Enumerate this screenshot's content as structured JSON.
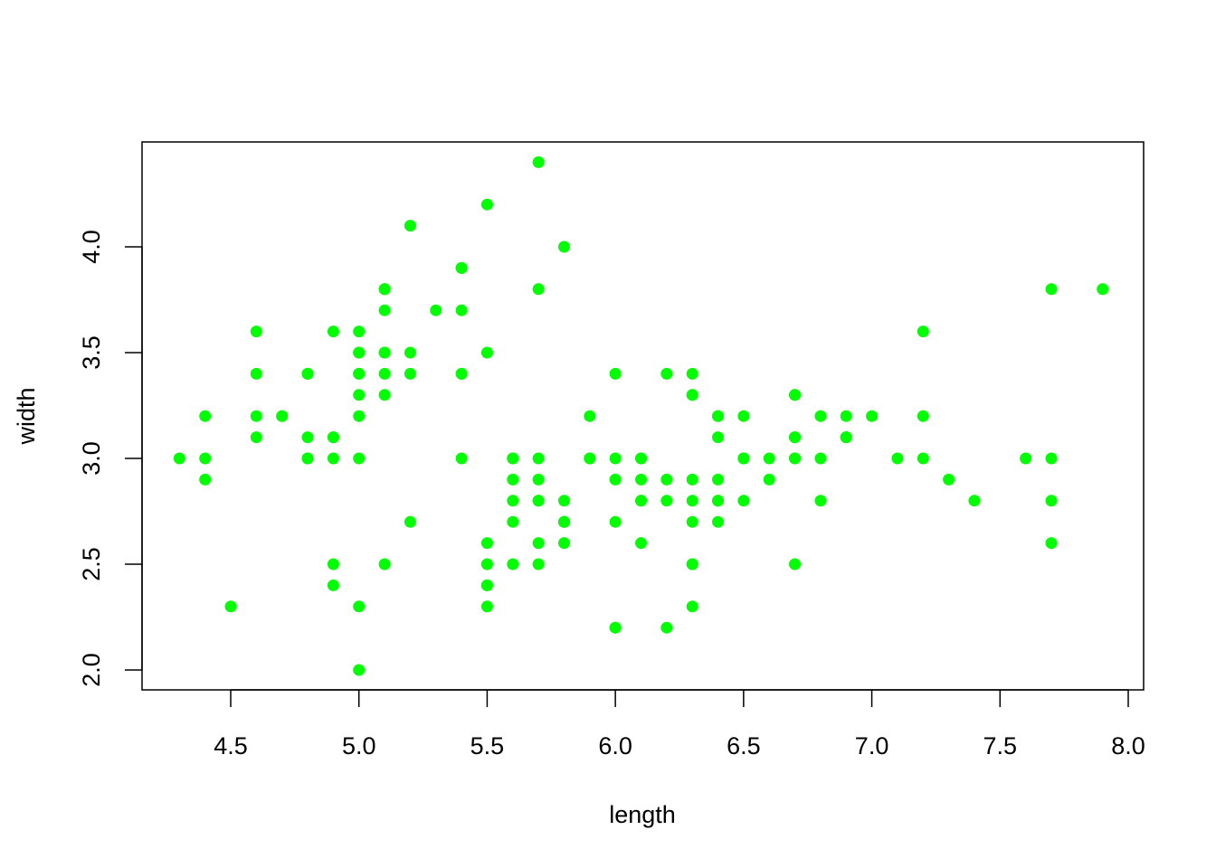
{
  "chart_data": {
    "type": "scatter",
    "title": "",
    "xlabel": "length",
    "ylabel": "width",
    "xlim": [
      4.3,
      7.9
    ],
    "ylim": [
      2.0,
      4.4
    ],
    "x_ticks": [
      "4.5",
      "5.0",
      "5.5",
      "6.0",
      "6.5",
      "7.0",
      "7.5",
      "8.0"
    ],
    "y_ticks": [
      "2.0",
      "2.5",
      "3.0",
      "3.5",
      "4.0"
    ],
    "grid": false,
    "point_color": "#00ff00",
    "points": [
      [
        5.1,
        3.5
      ],
      [
        4.9,
        3.0
      ],
      [
        4.7,
        3.2
      ],
      [
        4.6,
        3.1
      ],
      [
        5.0,
        3.6
      ],
      [
        5.4,
        3.9
      ],
      [
        4.6,
        3.4
      ],
      [
        5.0,
        3.4
      ],
      [
        4.4,
        2.9
      ],
      [
        4.9,
        3.1
      ],
      [
        5.4,
        3.7
      ],
      [
        4.8,
        3.4
      ],
      [
        4.8,
        3.0
      ],
      [
        4.3,
        3.0
      ],
      [
        5.8,
        4.0
      ],
      [
        5.7,
        4.4
      ],
      [
        5.4,
        3.9
      ],
      [
        5.1,
        3.5
      ],
      [
        5.7,
        3.8
      ],
      [
        5.1,
        3.8
      ],
      [
        5.4,
        3.4
      ],
      [
        5.1,
        3.7
      ],
      [
        4.6,
        3.6
      ],
      [
        5.1,
        3.3
      ],
      [
        4.8,
        3.4
      ],
      [
        5.0,
        3.0
      ],
      [
        5.0,
        3.4
      ],
      [
        5.2,
        3.5
      ],
      [
        5.2,
        3.4
      ],
      [
        4.7,
        3.2
      ],
      [
        4.8,
        3.1
      ],
      [
        5.4,
        3.4
      ],
      [
        5.2,
        4.1
      ],
      [
        5.5,
        4.2
      ],
      [
        4.9,
        3.1
      ],
      [
        5.0,
        3.2
      ],
      [
        5.5,
        3.5
      ],
      [
        4.9,
        3.6
      ],
      [
        4.4,
        3.0
      ],
      [
        5.1,
        3.4
      ],
      [
        5.0,
        3.5
      ],
      [
        4.5,
        2.3
      ],
      [
        4.4,
        3.2
      ],
      [
        5.0,
        3.5
      ],
      [
        5.1,
        3.8
      ],
      [
        4.8,
        3.0
      ],
      [
        5.1,
        3.8
      ],
      [
        4.6,
        3.2
      ],
      [
        5.3,
        3.7
      ],
      [
        5.0,
        3.3
      ],
      [
        7.0,
        3.2
      ],
      [
        6.4,
        3.2
      ],
      [
        6.9,
        3.1
      ],
      [
        5.5,
        2.3
      ],
      [
        6.5,
        2.8
      ],
      [
        5.7,
        2.8
      ],
      [
        6.3,
        3.3
      ],
      [
        4.9,
        2.4
      ],
      [
        6.6,
        2.9
      ],
      [
        5.2,
        2.7
      ],
      [
        5.0,
        2.0
      ],
      [
        5.9,
        3.0
      ],
      [
        6.0,
        2.2
      ],
      [
        6.1,
        2.9
      ],
      [
        5.6,
        2.9
      ],
      [
        6.7,
        3.1
      ],
      [
        5.6,
        3.0
      ],
      [
        5.8,
        2.7
      ],
      [
        6.2,
        2.2
      ],
      [
        5.6,
        2.5
      ],
      [
        5.9,
        3.2
      ],
      [
        6.1,
        2.8
      ],
      [
        6.3,
        2.5
      ],
      [
        6.1,
        2.8
      ],
      [
        6.4,
        2.9
      ],
      [
        6.6,
        3.0
      ],
      [
        6.8,
        2.8
      ],
      [
        6.7,
        3.0
      ],
      [
        6.0,
        2.9
      ],
      [
        5.7,
        2.6
      ],
      [
        5.5,
        2.4
      ],
      [
        5.5,
        2.4
      ],
      [
        5.8,
        2.7
      ],
      [
        6.0,
        2.7
      ],
      [
        5.4,
        3.0
      ],
      [
        6.0,
        3.4
      ],
      [
        6.7,
        3.1
      ],
      [
        6.3,
        2.3
      ],
      [
        5.6,
        3.0
      ],
      [
        5.5,
        2.5
      ],
      [
        5.5,
        2.6
      ],
      [
        6.1,
        3.0
      ],
      [
        5.8,
        2.6
      ],
      [
        5.0,
        2.3
      ],
      [
        5.6,
        2.7
      ],
      [
        5.7,
        3.0
      ],
      [
        5.7,
        2.9
      ],
      [
        6.2,
        2.9
      ],
      [
        5.1,
        2.5
      ],
      [
        5.7,
        2.8
      ],
      [
        6.3,
        3.3
      ],
      [
        5.8,
        2.7
      ],
      [
        7.1,
        3.0
      ],
      [
        6.3,
        2.9
      ],
      [
        6.5,
        3.0
      ],
      [
        7.6,
        3.0
      ],
      [
        4.9,
        2.5
      ],
      [
        7.3,
        2.9
      ],
      [
        6.7,
        2.5
      ],
      [
        7.2,
        3.6
      ],
      [
        6.5,
        3.2
      ],
      [
        6.4,
        2.7
      ],
      [
        6.8,
        3.0
      ],
      [
        5.7,
        2.5
      ],
      [
        5.8,
        2.8
      ],
      [
        6.4,
        3.2
      ],
      [
        6.5,
        3.0
      ],
      [
        7.7,
        3.8
      ],
      [
        7.7,
        2.6
      ],
      [
        6.0,
        2.2
      ],
      [
        6.9,
        3.2
      ],
      [
        5.6,
        2.8
      ],
      [
        7.7,
        2.8
      ],
      [
        6.3,
        2.7
      ],
      [
        6.7,
        3.3
      ],
      [
        7.2,
        3.2
      ],
      [
        6.2,
        2.8
      ],
      [
        6.1,
        3.0
      ],
      [
        6.4,
        2.8
      ],
      [
        7.2,
        3.0
      ],
      [
        7.4,
        2.8
      ],
      [
        7.9,
        3.8
      ],
      [
        6.4,
        2.8
      ],
      [
        6.3,
        2.8
      ],
      [
        6.1,
        2.6
      ],
      [
        7.7,
        3.0
      ],
      [
        6.3,
        3.4
      ],
      [
        6.4,
        3.1
      ],
      [
        6.0,
        3.0
      ],
      [
        6.9,
        3.1
      ],
      [
        6.7,
        3.1
      ],
      [
        6.9,
        3.1
      ],
      [
        5.8,
        2.7
      ],
      [
        6.8,
        3.2
      ],
      [
        6.7,
        3.3
      ],
      [
        6.7,
        3.0
      ],
      [
        6.3,
        2.5
      ],
      [
        6.5,
        3.0
      ],
      [
        6.2,
        3.4
      ],
      [
        5.9,
        3.0
      ]
    ]
  }
}
